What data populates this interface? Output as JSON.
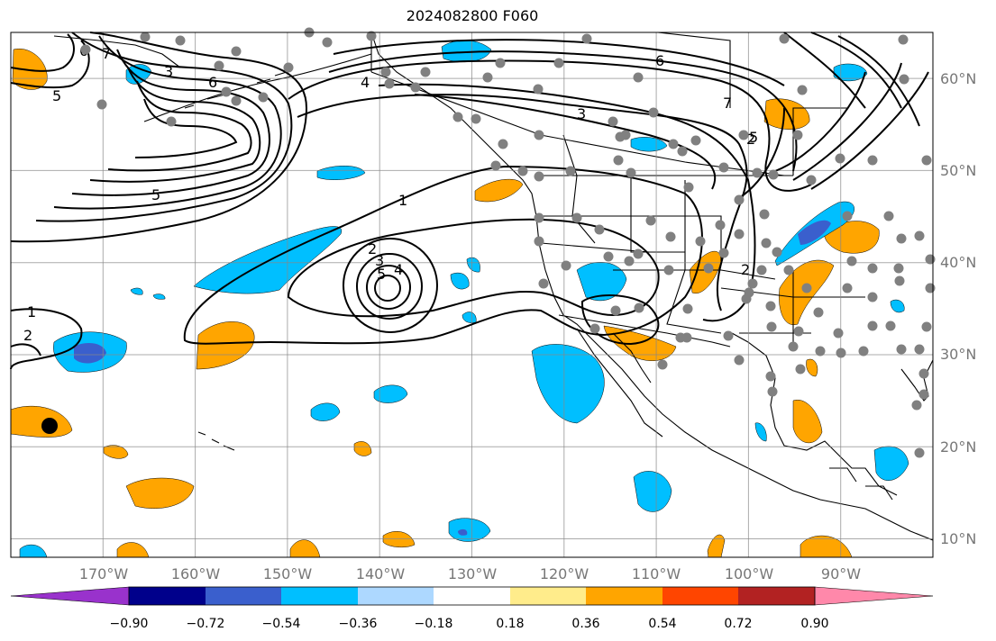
{
  "title": "2024082800 F060",
  "map": {
    "projection": "equirectangular",
    "lon_range": [
      -180,
      -80
    ],
    "lat_range": [
      8,
      65
    ],
    "gridlines": true,
    "lon_ticks": [
      "170°W",
      "160°W",
      "150°W",
      "140°W",
      "130°W",
      "120°W",
      "110°W",
      "100°W",
      "90°W"
    ],
    "lat_ticks": [
      "10°N",
      "20°N",
      "30°N",
      "40°N",
      "50°N",
      "60°N"
    ],
    "contour_labels": [
      "5",
      "6",
      "7",
      "3",
      "5",
      "6",
      "4",
      "3",
      "6",
      "7",
      "2",
      "5",
      "1",
      "2",
      "3",
      "4",
      "5",
      "1",
      "2",
      "2"
    ],
    "station_marker_color": "#808080",
    "highlight_marker_color": "#000000"
  },
  "colorbar": {
    "ticks": [
      "−0.90",
      "−0.72",
      "−0.54",
      "−0.36",
      "−0.18",
      "0.18",
      "0.36",
      "0.54",
      "0.72",
      "0.90"
    ],
    "colors": [
      "#9932cc",
      "#00008b",
      "#3a5fcd",
      "#00bfff",
      "#add8ff",
      "#ffffff",
      "#ffec8b",
      "#ffa500",
      "#ff4500",
      "#b22222",
      "#ff88aa"
    ]
  }
}
